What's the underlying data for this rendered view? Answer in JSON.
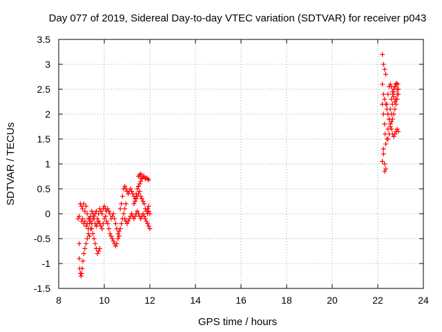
{
  "chart_data": {
    "type": "scatter",
    "title": "Day 077 of 2019, Sidereal Day-to-day VTEC variation (SDTVAR) for receiver p043",
    "xlabel": "GPS time / hours",
    "ylabel": "SDTVAR / TECUs",
    "xlim": [
      8,
      24
    ],
    "ylim": [
      -1.5,
      3.5
    ],
    "xticks": [
      8,
      10,
      12,
      14,
      16,
      18,
      20,
      22,
      24
    ],
    "yticks": [
      -1.5,
      -1,
      -0.5,
      0,
      0.5,
      1,
      1.5,
      2,
      2.5,
      3,
      3.5
    ],
    "xtick_labels": [
      "8",
      "10",
      "12",
      "14",
      "16",
      "18",
      "20",
      "22",
      "24"
    ],
    "ytick_labels": [
      "-1.5",
      "-1",
      "-0.5",
      "0",
      "0.5",
      "1",
      "1.5",
      "2",
      "2.5",
      "3",
      "3.5"
    ],
    "grid": true,
    "marker": "+",
    "marker_color": "#ff0000",
    "series": [
      {
        "name": "SDTVAR",
        "points": [
          [
            8.85,
            -0.1
          ],
          [
            8.9,
            -0.05
          ],
          [
            8.95,
            0.2
          ],
          [
            9.0,
            0.15
          ],
          [
            9.05,
            0.1
          ],
          [
            9.1,
            0.2
          ],
          [
            9.15,
            0.05
          ],
          [
            9.2,
            0.15
          ],
          [
            9.25,
            0.0
          ],
          [
            9.3,
            -0.1
          ],
          [
            9.35,
            -0.2
          ],
          [
            9.4,
            -0.15
          ],
          [
            9.45,
            -0.3
          ],
          [
            9.5,
            -0.4
          ],
          [
            9.55,
            -0.5
          ],
          [
            9.6,
            -0.6
          ],
          [
            9.65,
            -0.7
          ],
          [
            9.7,
            -0.8
          ],
          [
            9.75,
            -0.75
          ],
          [
            9.8,
            -0.7
          ],
          [
            8.9,
            -0.6
          ],
          [
            8.9,
            -0.9
          ],
          [
            8.92,
            -1.1
          ],
          [
            8.95,
            -1.2
          ],
          [
            8.98,
            -1.25
          ],
          [
            9.0,
            -1.2
          ],
          [
            9.03,
            -1.1
          ],
          [
            9.06,
            -0.95
          ],
          [
            9.1,
            -0.8
          ],
          [
            9.15,
            -0.7
          ],
          [
            9.2,
            -0.6
          ],
          [
            9.25,
            -0.5
          ],
          [
            9.3,
            -0.4
          ],
          [
            9.35,
            -0.45
          ],
          [
            9.4,
            -0.3
          ],
          [
            9.45,
            -0.2
          ],
          [
            9.5,
            -0.1
          ],
          [
            9.55,
            -0.05
          ],
          [
            9.6,
            0.0
          ],
          [
            9.65,
            0.05
          ],
          [
            9.7,
            -0.1
          ],
          [
            9.75,
            0.0
          ],
          [
            9.8,
            0.1
          ],
          [
            9.85,
            0.05
          ],
          [
            9.9,
            0.0
          ],
          [
            9.95,
            0.1
          ],
          [
            10.0,
            0.15
          ],
          [
            10.05,
            0.1
          ],
          [
            10.1,
            0.05
          ],
          [
            10.15,
            0.1
          ],
          [
            10.2,
            0.05
          ],
          [
            10.25,
            0.0
          ],
          [
            10.3,
            -0.1
          ],
          [
            10.35,
            -0.05
          ],
          [
            10.4,
            0.0
          ],
          [
            10.45,
            -0.1
          ],
          [
            10.5,
            -0.2
          ],
          [
            10.55,
            -0.3
          ],
          [
            10.6,
            -0.4
          ],
          [
            10.65,
            -0.35
          ],
          [
            9.0,
            -0.15
          ],
          [
            9.05,
            -0.1
          ],
          [
            9.1,
            -0.2
          ],
          [
            9.15,
            -0.15
          ],
          [
            9.2,
            -0.25
          ],
          [
            9.25,
            -0.2
          ],
          [
            9.3,
            -0.3
          ],
          [
            9.35,
            -0.1
          ],
          [
            9.4,
            -0.05
          ],
          [
            9.45,
            0.05
          ],
          [
            9.5,
            0.0
          ],
          [
            9.55,
            -0.1
          ],
          [
            9.6,
            -0.2
          ],
          [
            9.65,
            -0.25
          ],
          [
            9.7,
            -0.2
          ],
          [
            9.75,
            -0.15
          ],
          [
            9.8,
            -0.2
          ],
          [
            9.85,
            -0.25
          ],
          [
            9.9,
            -0.3
          ],
          [
            9.95,
            -0.2
          ],
          [
            10.0,
            -0.1
          ],
          [
            10.05,
            -0.05
          ],
          [
            10.1,
            -0.15
          ],
          [
            10.15,
            -0.2
          ],
          [
            10.2,
            -0.3
          ],
          [
            10.25,
            -0.4
          ],
          [
            10.3,
            -0.45
          ],
          [
            10.35,
            -0.5
          ],
          [
            10.4,
            -0.55
          ],
          [
            10.45,
            -0.6
          ],
          [
            10.5,
            -0.65
          ],
          [
            10.55,
            -0.6
          ],
          [
            10.6,
            -0.5
          ],
          [
            10.65,
            -0.45
          ],
          [
            10.7,
            -0.3
          ],
          [
            10.75,
            -0.2
          ],
          [
            10.8,
            -0.1
          ],
          [
            10.85,
            0.0
          ],
          [
            10.9,
            0.1
          ],
          [
            10.95,
            0.2
          ],
          [
            10.7,
            0.1
          ],
          [
            10.75,
            0.2
          ],
          [
            10.8,
            0.35
          ],
          [
            10.85,
            0.5
          ],
          [
            10.9,
            0.55
          ],
          [
            10.95,
            0.5
          ],
          [
            11.0,
            0.45
          ],
          [
            11.05,
            0.4
          ],
          [
            11.1,
            0.45
          ],
          [
            11.15,
            0.5
          ],
          [
            11.2,
            0.45
          ],
          [
            11.25,
            0.4
          ],
          [
            11.3,
            0.35
          ],
          [
            11.35,
            0.3
          ],
          [
            11.4,
            0.4
          ],
          [
            11.45,
            0.5
          ],
          [
            11.5,
            0.55
          ],
          [
            11.55,
            0.6
          ],
          [
            11.6,
            0.65
          ],
          [
            11.65,
            0.7
          ],
          [
            11.7,
            0.75
          ],
          [
            11.75,
            0.75
          ],
          [
            11.8,
            0.7
          ],
          [
            11.85,
            0.72
          ],
          [
            11.9,
            0.7
          ],
          [
            11.95,
            0.68
          ],
          [
            11.5,
            0.75
          ],
          [
            11.55,
            0.78
          ],
          [
            11.6,
            0.8
          ],
          [
            11.65,
            0.72
          ],
          [
            10.9,
            -0.1
          ],
          [
            10.95,
            -0.15
          ],
          [
            11.0,
            -0.2
          ],
          [
            11.05,
            -0.15
          ],
          [
            11.1,
            -0.1
          ],
          [
            11.15,
            -0.05
          ],
          [
            11.2,
            0.0
          ],
          [
            11.25,
            -0.05
          ],
          [
            11.3,
            -0.1
          ],
          [
            11.35,
            -0.05
          ],
          [
            11.4,
            0.0
          ],
          [
            11.45,
            0.05
          ],
          [
            11.5,
            0.0
          ],
          [
            11.55,
            -0.05
          ],
          [
            11.6,
            -0.1
          ],
          [
            11.65,
            -0.05
          ],
          [
            11.7,
            0.0
          ],
          [
            11.75,
            -0.05
          ],
          [
            11.8,
            -0.1
          ],
          [
            11.85,
            -0.15
          ],
          [
            11.9,
            -0.2
          ],
          [
            11.95,
            -0.25
          ],
          [
            12.0,
            -0.3
          ],
          [
            11.9,
            0.0
          ],
          [
            11.95,
            0.05
          ],
          [
            12.0,
            0.0
          ],
          [
            11.3,
            0.2
          ],
          [
            11.35,
            0.25
          ],
          [
            11.4,
            0.3
          ],
          [
            11.45,
            0.35
          ],
          [
            11.5,
            0.4
          ],
          [
            11.55,
            0.45
          ],
          [
            11.6,
            0.35
          ],
          [
            11.65,
            0.3
          ],
          [
            11.7,
            0.25
          ],
          [
            11.75,
            0.2
          ],
          [
            11.8,
            0.1
          ],
          [
            11.85,
            0.05
          ],
          [
            11.9,
            0.1
          ],
          [
            11.95,
            0.15
          ],
          [
            22.2,
            3.2
          ],
          [
            22.25,
            3.0
          ],
          [
            22.3,
            2.9
          ],
          [
            22.35,
            2.8
          ],
          [
            22.2,
            2.6
          ],
          [
            22.25,
            2.4
          ],
          [
            22.3,
            2.3
          ],
          [
            22.35,
            2.2
          ],
          [
            22.4,
            2.1
          ],
          [
            22.45,
            2.0
          ],
          [
            22.5,
            1.9
          ],
          [
            22.55,
            1.8
          ],
          [
            22.6,
            1.7
          ],
          [
            22.65,
            1.6
          ],
          [
            22.7,
            1.55
          ],
          [
            22.75,
            1.6
          ],
          [
            22.8,
            1.65
          ],
          [
            22.85,
            1.7
          ],
          [
            22.9,
            1.65
          ],
          [
            22.2,
            2.2
          ],
          [
            22.25,
            2.0
          ],
          [
            22.3,
            1.8
          ],
          [
            22.32,
            1.6
          ],
          [
            22.35,
            1.4
          ],
          [
            22.25,
            1.2
          ],
          [
            22.3,
            1.0
          ],
          [
            22.35,
            0.9
          ],
          [
            22.3,
            0.85
          ],
          [
            22.2,
            1.05
          ],
          [
            22.25,
            1.3
          ],
          [
            22.4,
            1.5
          ],
          [
            22.45,
            1.7
          ],
          [
            22.5,
            1.9
          ],
          [
            22.55,
            2.1
          ],
          [
            22.6,
            2.3
          ],
          [
            22.65,
            2.4
          ],
          [
            22.7,
            2.5
          ],
          [
            22.75,
            2.55
          ],
          [
            22.8,
            2.6
          ],
          [
            22.85,
            2.5
          ],
          [
            22.9,
            2.4
          ],
          [
            22.85,
            2.3
          ],
          [
            22.8,
            2.2
          ],
          [
            22.75,
            2.1
          ],
          [
            22.7,
            2.0
          ],
          [
            22.65,
            1.9
          ],
          [
            22.6,
            1.85
          ],
          [
            22.55,
            1.8
          ],
          [
            22.5,
            1.9
          ],
          [
            22.45,
            2.0
          ],
          [
            22.4,
            2.2
          ],
          [
            22.45,
            2.4
          ],
          [
            22.5,
            2.55
          ],
          [
            22.55,
            2.6
          ],
          [
            22.6,
            2.55
          ],
          [
            22.65,
            2.45
          ],
          [
            22.7,
            2.35
          ],
          [
            22.75,
            2.25
          ],
          [
            22.8,
            2.3
          ],
          [
            22.85,
            2.4
          ],
          [
            22.9,
            2.5
          ],
          [
            22.88,
            2.6
          ],
          [
            22.82,
            2.62
          ],
          [
            22.76,
            2.55
          ],
          [
            22.7,
            2.45
          ],
          [
            22.65,
            2.2
          ],
          [
            22.6,
            2.0
          ],
          [
            22.55,
            1.75
          ],
          [
            22.5,
            1.6
          ],
          [
            22.45,
            1.5
          ]
        ]
      }
    ]
  }
}
